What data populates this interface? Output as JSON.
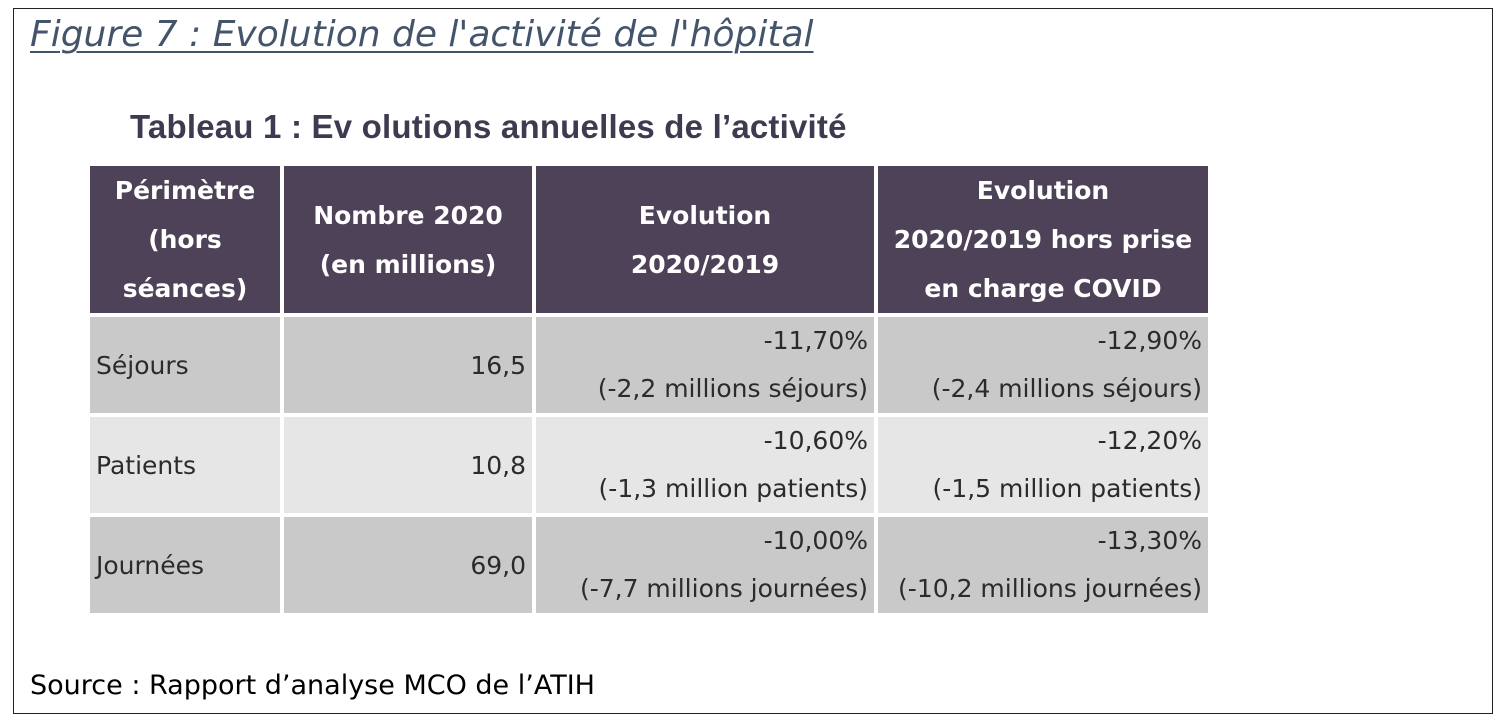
{
  "figure_title": "Figure 7 : Evolution de l'activité de l'hôpital",
  "table_title": "Tableau 1 : Ev olutions annuelles de l’activité",
  "table": {
    "headers": [
      {
        "lines": [
          "Périmètre",
          "(hors",
          "séances)"
        ]
      },
      {
        "lines": [
          "Nombre 2020",
          "(en millions)"
        ]
      },
      {
        "lines": [
          "Evolution",
          "2020/2019"
        ]
      },
      {
        "lines": [
          "Evolution",
          "2020/2019 hors prise",
          "en charge COVID"
        ]
      }
    ],
    "rows": [
      {
        "label": "Séjours",
        "number": "16,5",
        "evolution": {
          "pct": "-11,70%",
          "detail": "(-2,2 millions séjours)"
        },
        "evolution_hors_covid": {
          "pct": "-12,90%",
          "detail": "(-2,4 millions séjours)"
        }
      },
      {
        "label": "Patients",
        "number": "10,8",
        "evolution": {
          "pct": "-10,60%",
          "detail": "(-1,3 million patients)"
        },
        "evolution_hors_covid": {
          "pct": "-12,20%",
          "detail": "(-1,5 million patients)"
        }
      },
      {
        "label": "Journées",
        "number": "69,0",
        "evolution": {
          "pct": "-10,00%",
          "detail": "(-7,7 millions journées)"
        },
        "evolution_hors_covid": {
          "pct": "-13,30%",
          "detail": "(-10,2 millions journées)"
        }
      }
    ]
  },
  "source": "Source : Rapport d’analyse MCO de l’ATIH",
  "colors": {
    "header_bg": "#4e4259",
    "row_dark": "#c9c9c9",
    "row_light": "#e6e6e6",
    "figure_title": "#44546a"
  }
}
